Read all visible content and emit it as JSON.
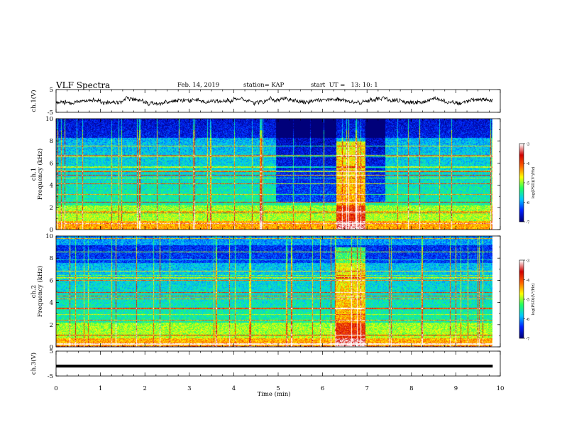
{
  "header": {
    "title": "VLF Spectra",
    "date": "Feb. 14, 2019",
    "station": "station= KAP",
    "start": "start  UT =   13: 10: 1"
  },
  "chart_data": [
    {
      "type": "line",
      "panel": "ch1-waveform",
      "ylabel": "ch.1(V)",
      "ylim": [
        -5,
        5
      ],
      "yticks": [
        "5",
        "-5"
      ],
      "xlim": [
        0,
        10
      ],
      "line_color": "#000000"
    },
    {
      "type": "heatmap",
      "panel": "ch1-spectrogram",
      "ylabel": "ch.1\nFrequency (kHz)",
      "ylabel_lines": [
        "ch.1",
        "Frequency (kHz)"
      ],
      "ylim": [
        0,
        10
      ],
      "yticks": [
        "0",
        "2",
        "4",
        "6",
        "8",
        "10"
      ],
      "xlim": [
        0,
        10
      ],
      "data_extent_min": 9.83,
      "colorbar": {
        "label": "log(PSD)(V²/Hz)",
        "range": [
          -7,
          -3
        ],
        "ticks": [
          "-3",
          "-4",
          "-5",
          "-6",
          "-7"
        ]
      },
      "events": [
        {
          "t_start": 4.95,
          "t_end": 6.3,
          "note": "low broadband level"
        },
        {
          "t_start": 6.3,
          "t_end": 6.95,
          "note": "strong broadband burst 0-8 kHz"
        },
        {
          "t_start": 6.95,
          "t_end": 7.4,
          "note": "low broadband level"
        }
      ]
    },
    {
      "type": "heatmap",
      "panel": "ch2-spectrogram",
      "ylabel": "ch.2\nFrequency (kHz)",
      "ylabel_lines": [
        "ch.2",
        "Frequency (kHz)"
      ],
      "ylim": [
        0,
        10
      ],
      "yticks": [
        "0",
        "2",
        "4",
        "6",
        "8",
        "10"
      ],
      "xlim": [
        0,
        10
      ],
      "data_extent_min": 9.83,
      "colorbar": {
        "label": "log(PSD)(V²/Hz)",
        "range": [
          -7,
          -3
        ],
        "ticks": [
          "-3",
          "-4",
          "-5",
          "-6",
          "-7"
        ]
      },
      "events": [
        {
          "t_start": 6.3,
          "t_end": 6.95,
          "note": "strong broadband burst 0-9 kHz"
        }
      ]
    },
    {
      "type": "line",
      "panel": "ch3-waveform",
      "ylabel": "ch.3(V)",
      "ylim": [
        -5,
        5
      ],
      "yticks": [
        "5",
        "-5"
      ],
      "xlim": [
        0,
        10
      ],
      "value": -1.0,
      "line_color": "#000000"
    }
  ],
  "xaxis": {
    "label": "Time  (min)",
    "ticks": [
      "0",
      "1",
      "2",
      "3",
      "4",
      "5",
      "6",
      "7",
      "8",
      "9",
      "10"
    ]
  },
  "colormap": [
    "#00007a",
    "#0020ff",
    "#00c8ff",
    "#20ff60",
    "#ffff00",
    "#ff6000",
    "#d00000",
    "#ffffff"
  ]
}
